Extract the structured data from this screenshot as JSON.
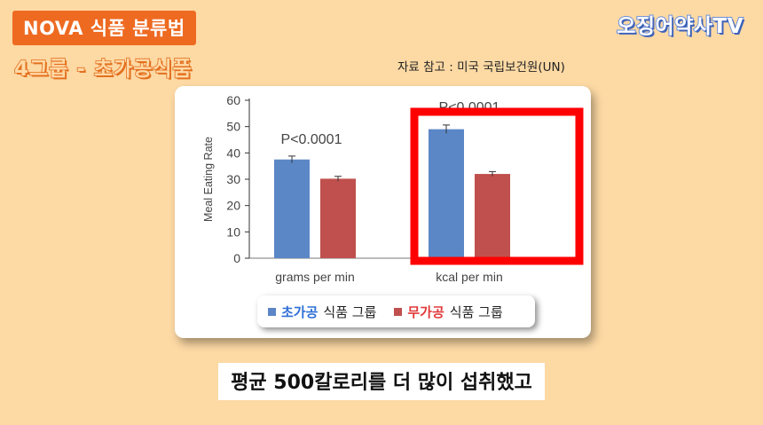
{
  "header": {
    "badge": "NOVA 식품 분류법",
    "subtitle": "4그룹 - 초가공식품",
    "brand": "오징어약사TV",
    "source": "자료 참고 : 미국 국립보건원(UN)"
  },
  "caption": "평균 500칼로리를 더 많이 섭취했고",
  "colors": {
    "ultra": "#5B87C7",
    "unprocessed": "#C0504D",
    "highlight": "#FF0000"
  },
  "legend": {
    "item1_colored": "초가공",
    "item1_rest": "식품 그룹",
    "item2_colored": "무가공",
    "item2_rest": "식품 그룹"
  },
  "chart_data": {
    "type": "bar",
    "categories": [
      "grams per min",
      "kcal per min"
    ],
    "series": [
      {
        "name": "초가공 식품 그룹",
        "values": [
          37.5,
          49
        ]
      },
      {
        "name": "무가공 식품 그룹",
        "values": [
          30.2,
          32
        ]
      }
    ],
    "ylabel": "Meal Eating Rate",
    "ylim": [
      0,
      60
    ],
    "yticks": [
      0,
      10,
      20,
      30,
      40,
      50,
      60
    ],
    "annotations": [
      "P<0.0001",
      "P<0.0001"
    ],
    "highlight": "kcal per min"
  }
}
